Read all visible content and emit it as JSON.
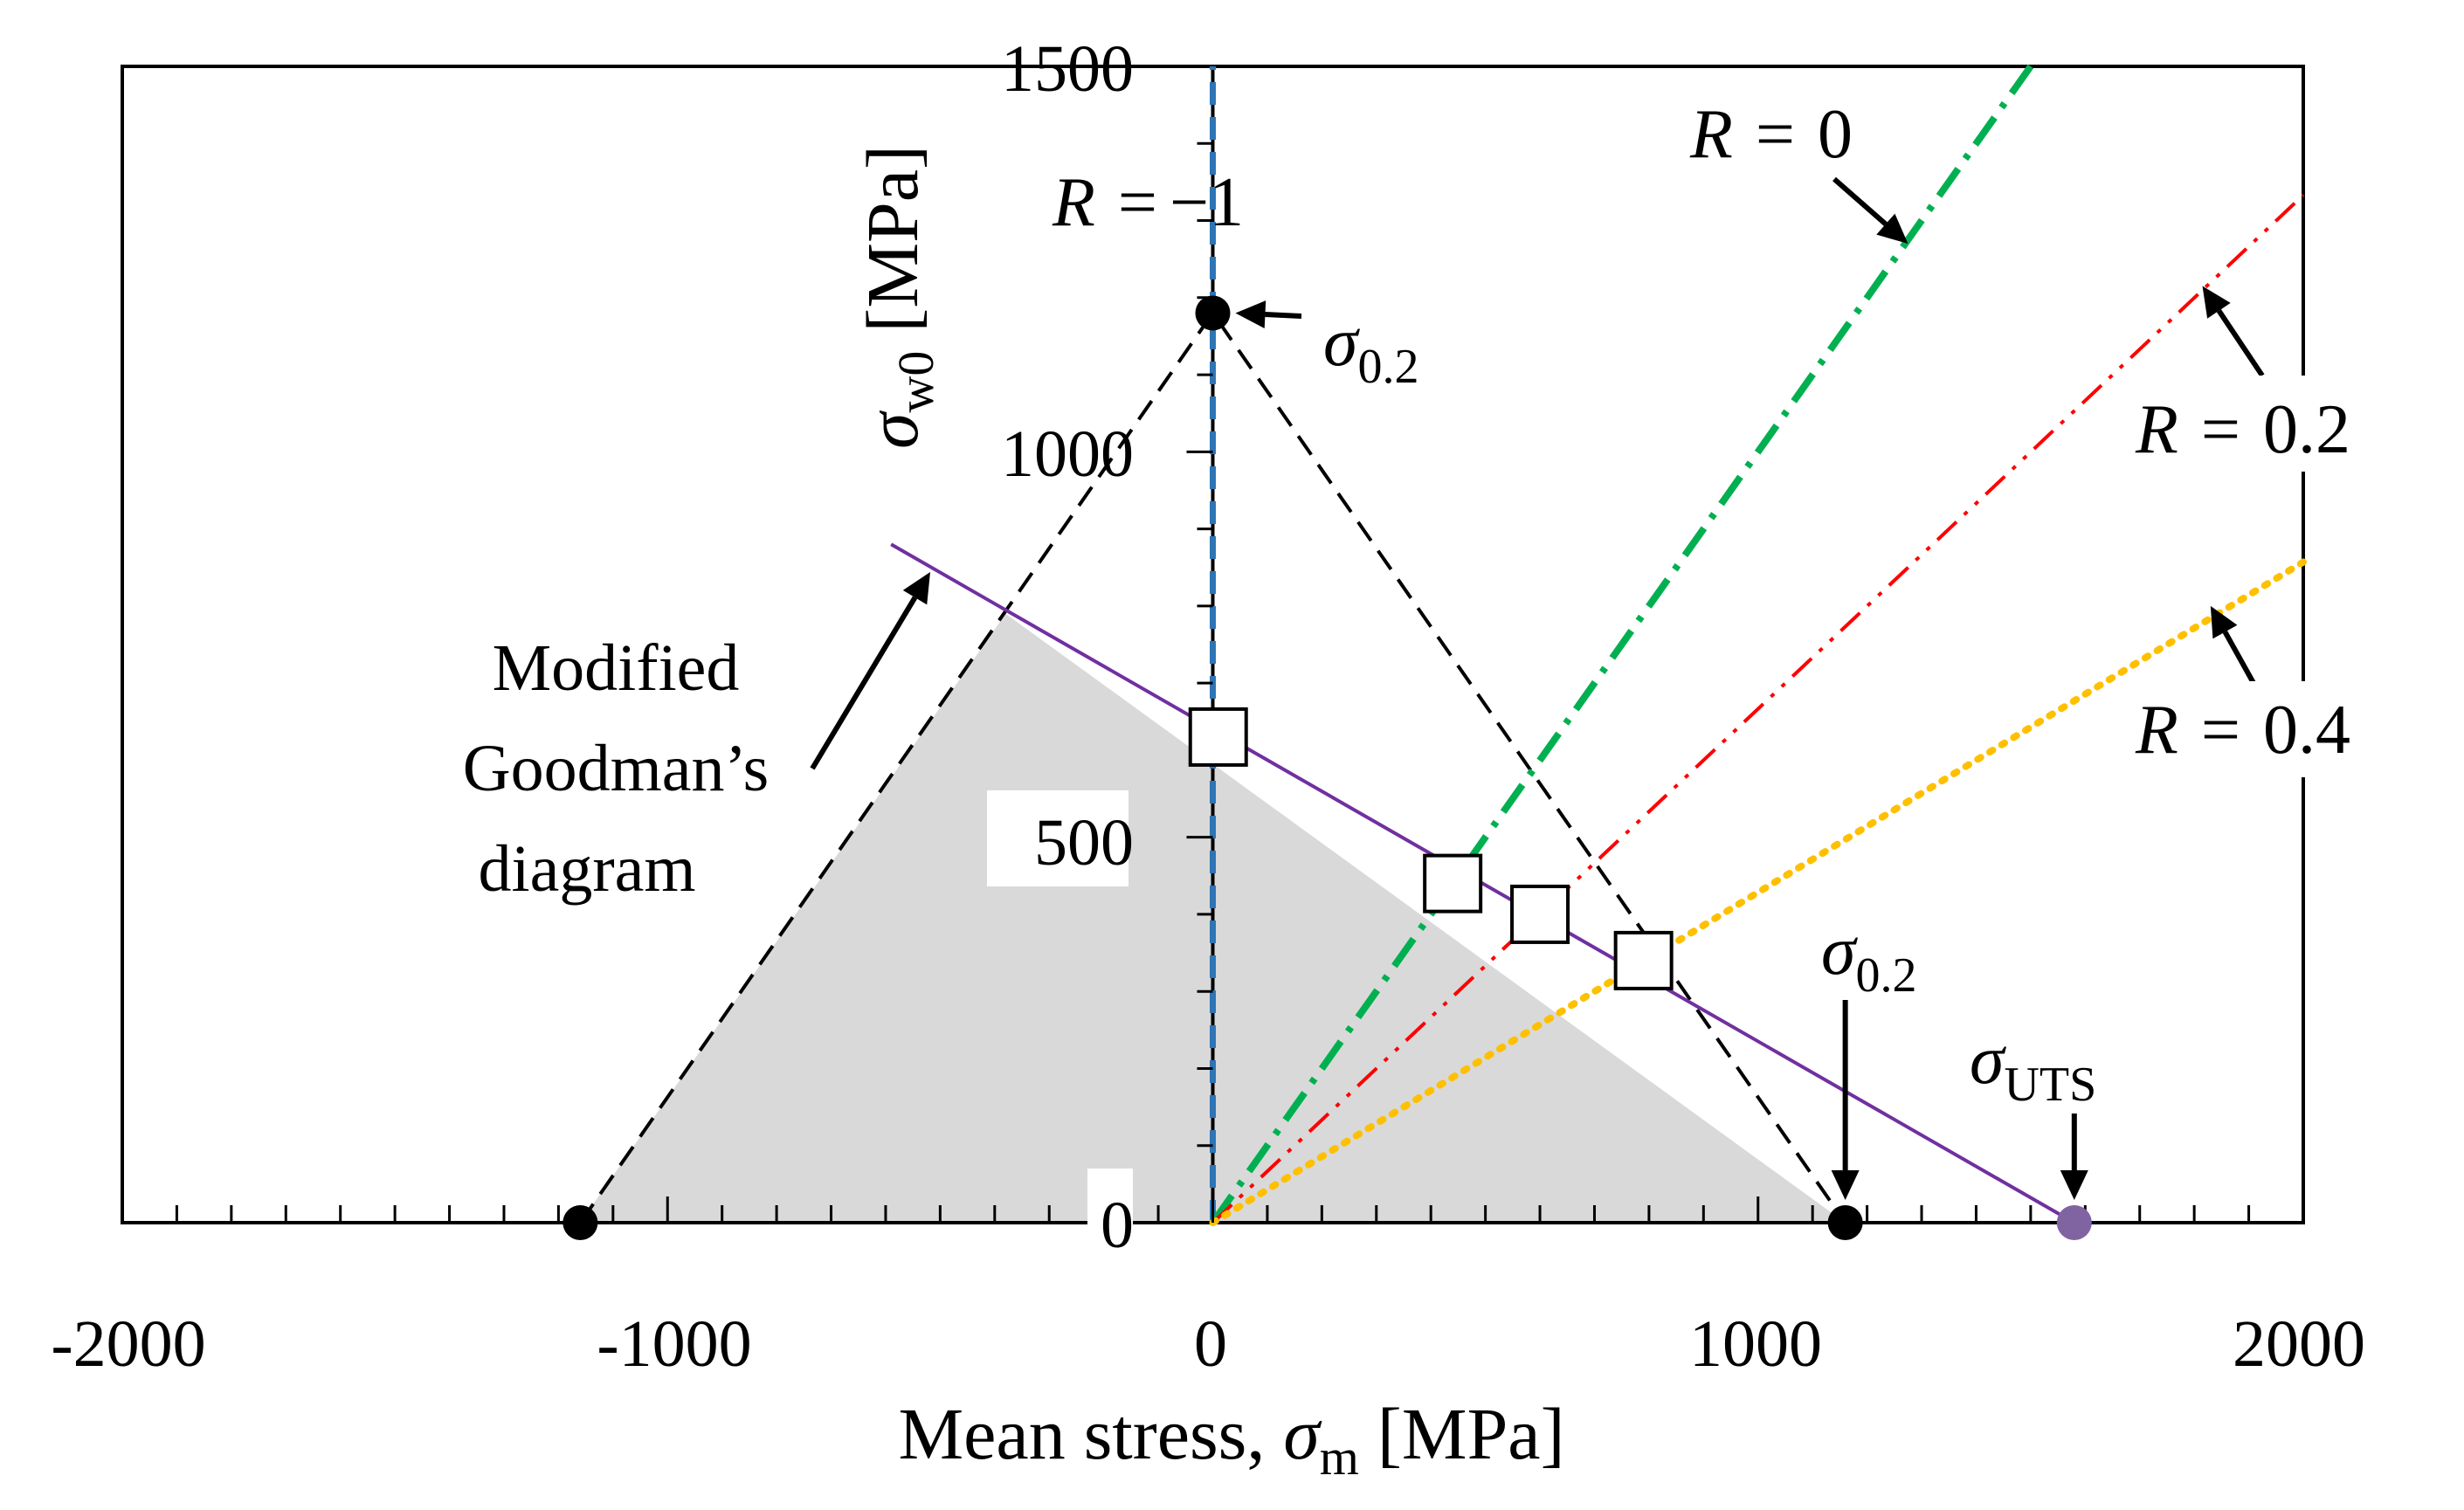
{
  "chart_data": {
    "type": "line",
    "title": "",
    "xlabel": "Mean stress, σm [MPa]",
    "xlabel_parts": {
      "prefix": "Mean stress, ",
      "symbol": "σ",
      "sub": "m",
      "suffix": " [MPa]"
    },
    "ylabel": "σw0 [MPa]",
    "ylabel_parts": {
      "symbol": "σ",
      "sub": "w0",
      "suffix": " [MPa]"
    },
    "xlim": [
      -2000,
      2000
    ],
    "ylim": [
      0,
      1500
    ],
    "x_ticks": [
      -2000,
      -1000,
      0,
      1000,
      2000
    ],
    "x_tick_labels": [
      "-2000",
      "-1000",
      "0",
      "1000",
      "2000"
    ],
    "y_ticks": [
      0,
      500,
      1000,
      1500
    ],
    "y_tick_labels": [
      "0",
      "500",
      "1000",
      "1500"
    ],
    "x_minor_step": 100,
    "y_minor_step": 100,
    "safe_region_polygon": [
      [
        -1160,
        0
      ],
      [
        -380,
        790
      ],
      [
        1160,
        0
      ]
    ],
    "series": [
      {
        "name": "yield-boundary",
        "style": "dashed",
        "color": "#000000",
        "points": [
          [
            -1160,
            0
          ],
          [
            0,
            1180
          ],
          [
            1160,
            0
          ]
        ]
      },
      {
        "name": "Modified Goodman's diagram",
        "style": "solid",
        "color": "#7030a0",
        "points": [
          [
            -590,
            880
          ],
          [
            1580,
            0
          ]
        ]
      },
      {
        "name": "R = -1",
        "style": "dashed",
        "color": "#2e75b6",
        "points": [
          [
            0,
            0
          ],
          [
            0,
            1500
          ]
        ]
      },
      {
        "name": "R = 0",
        "style": "dashdot",
        "color": "#00b050",
        "points": [
          [
            0,
            0
          ],
          [
            1500,
            1500
          ]
        ]
      },
      {
        "name": "R = 0.2",
        "style": "dashdotdot",
        "color": "#ff0000",
        "points": [
          [
            0,
            0
          ],
          [
            2000,
            1333
          ]
        ]
      },
      {
        "name": "R = 0.4",
        "style": "dotted",
        "color": "#ffc000",
        "points": [
          [
            0,
            0
          ],
          [
            2000,
            857
          ]
        ]
      }
    ],
    "markers": [
      {
        "name": "yield-point-top",
        "x": 0,
        "y": 1180,
        "shape": "circle",
        "color": "#000000"
      },
      {
        "name": "yield-point-left",
        "x": -1160,
        "y": 0,
        "shape": "circle",
        "color": "#000000"
      },
      {
        "name": "yield-point-right",
        "x": 1160,
        "y": 0,
        "shape": "circle",
        "color": "#000000"
      },
      {
        "name": "uts-point",
        "x": 1580,
        "y": 0,
        "shape": "circle",
        "color": "#8064a2"
      },
      {
        "name": "data-point-1",
        "x": 10,
        "y": 630,
        "shape": "square",
        "color": "#ffffff"
      },
      {
        "name": "data-point-2",
        "x": 440,
        "y": 440,
        "shape": "square",
        "color": "#ffffff"
      },
      {
        "name": "data-point-3",
        "x": 600,
        "y": 400,
        "shape": "square",
        "color": "#ffffff"
      },
      {
        "name": "data-point-4",
        "x": 790,
        "y": 340,
        "shape": "square",
        "color": "#ffffff"
      }
    ],
    "annotations": {
      "goodman_lines": [
        "Modified",
        "Goodman’s",
        "diagram"
      ],
      "sigma_02_label": {
        "symbol": "σ",
        "sub": "0.2"
      },
      "sigma_uts_label": {
        "symbol": "σ",
        "sub": "UTS"
      },
      "r_labels": [
        {
          "name": "r-minus1",
          "var": "R",
          "eq": "=",
          "val": "−1"
        },
        {
          "name": "r-0",
          "var": "R",
          "eq": "=",
          "val": "0"
        },
        {
          "name": "r-02",
          "var": "R",
          "eq": "=",
          "val": "0.2"
        },
        {
          "name": "r-04",
          "var": "R",
          "eq": "=",
          "val": "0.4"
        }
      ]
    },
    "colors": {
      "safe_region": "#d9d9d9",
      "axis": "#000000",
      "goodman": "#7030a0",
      "r_minus1": "#2e75b6",
      "r_0": "#00b050",
      "r_02": "#ff0000",
      "r_04": "#ffc000",
      "uts_point": "#8064a2"
    }
  }
}
